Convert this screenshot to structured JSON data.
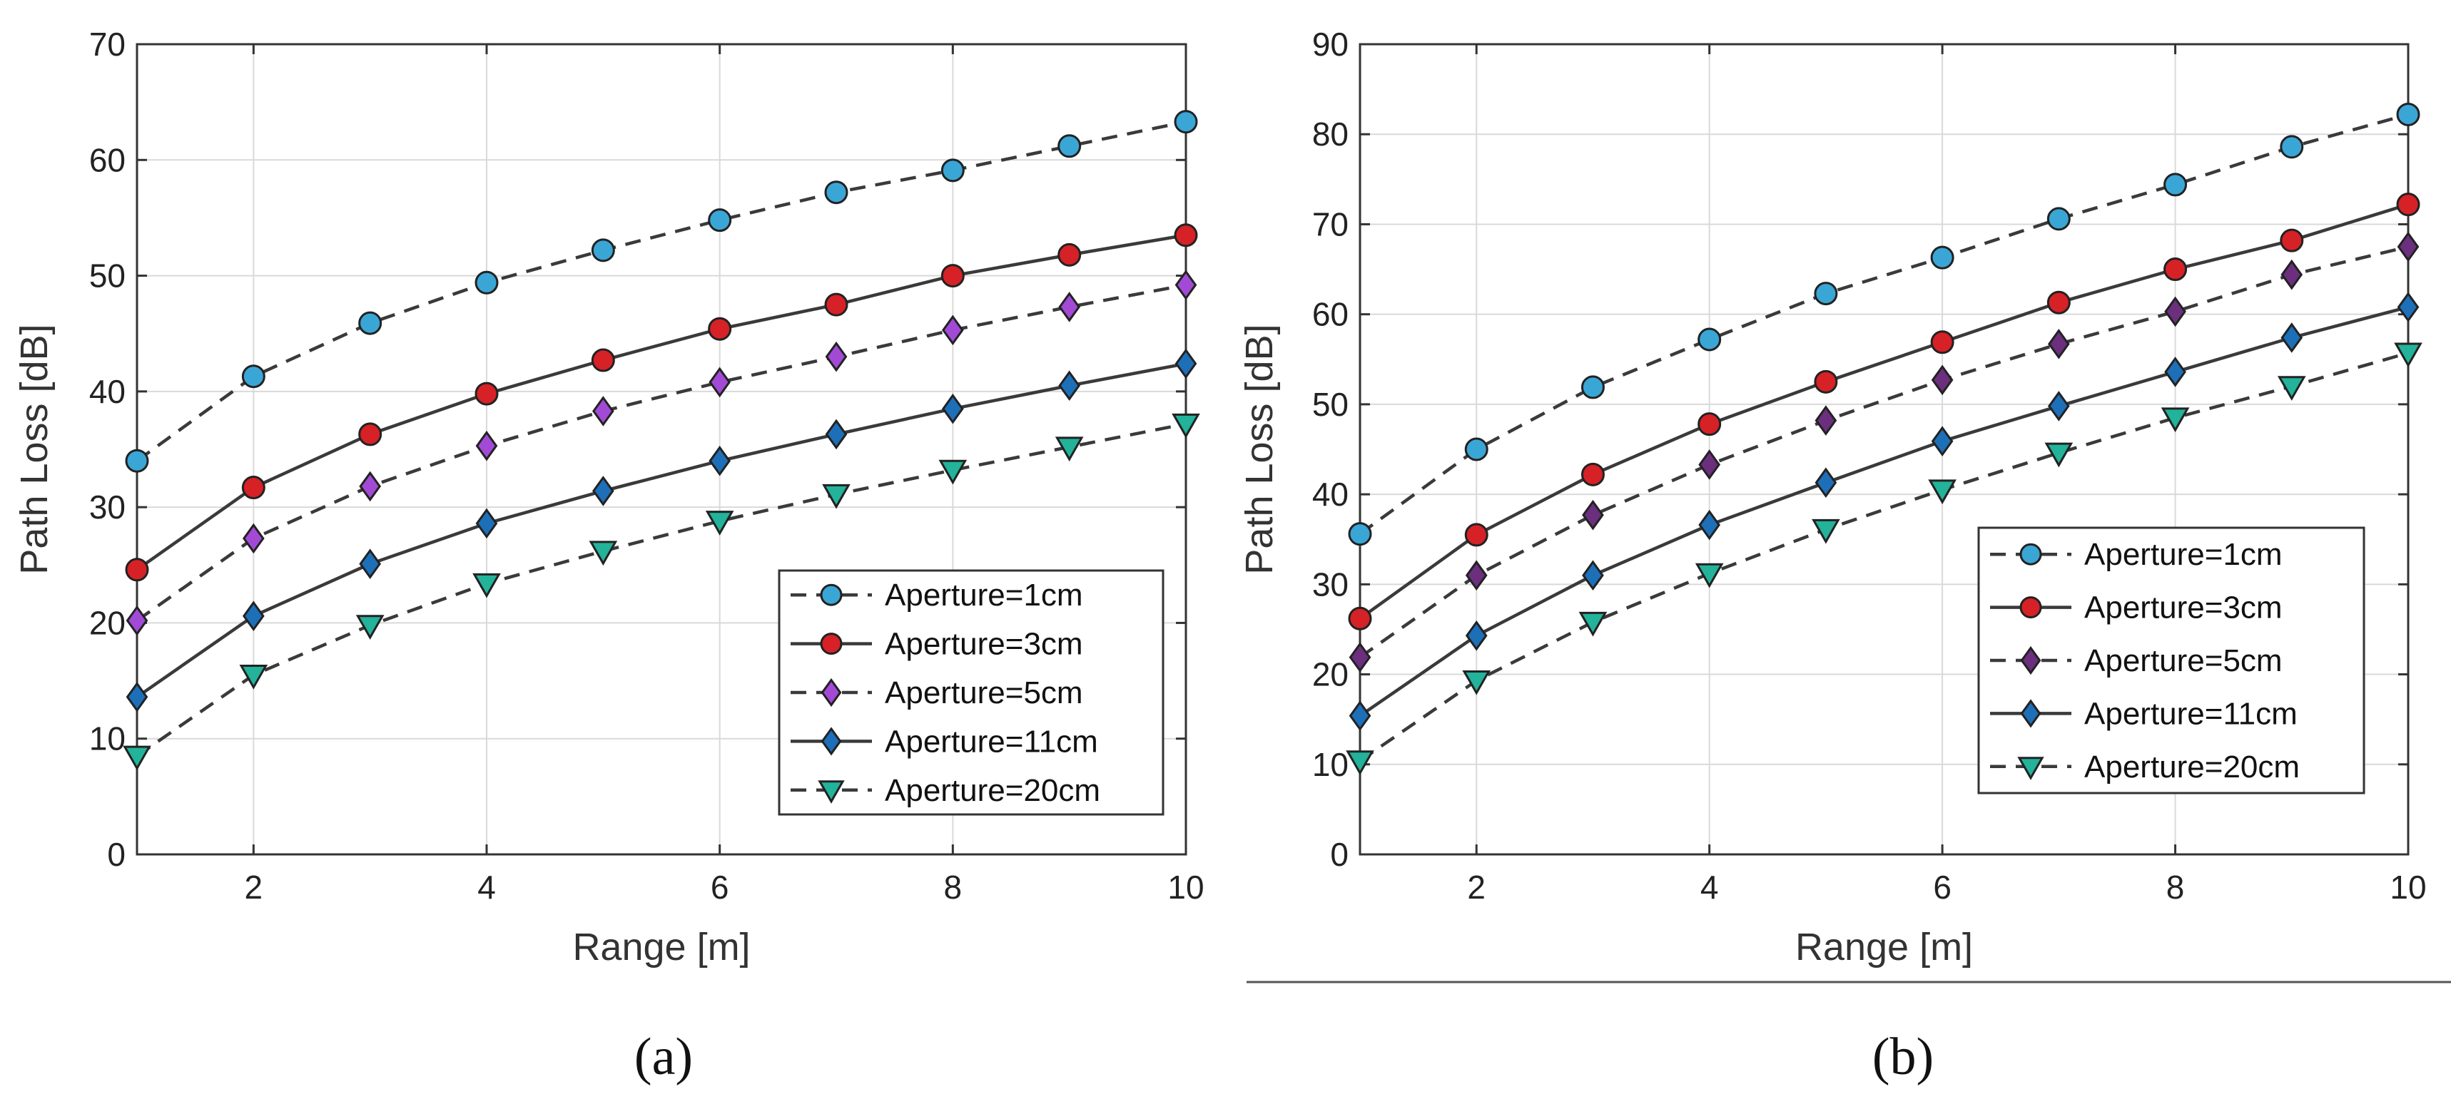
{
  "chart_data": [
    {
      "panel_label": "(a)",
      "type": "line",
      "xlabel": "Range [m]",
      "ylabel": "Path Loss [dB]",
      "xlim": [
        1,
        10
      ],
      "ylim": [
        0,
        70
      ],
      "xticks": [
        2,
        4,
        6,
        8,
        10
      ],
      "yticks": [
        0,
        10,
        20,
        30,
        40,
        50,
        60,
        70
      ],
      "grid": true,
      "legend_position": "lower-right",
      "x": [
        1,
        2,
        3,
        4,
        5,
        6,
        7,
        8,
        9,
        10
      ],
      "series": [
        {
          "name": "Aperture=1cm",
          "style": "dashed",
          "marker": "circle",
          "color": "#3aa6d6",
          "values": [
            34.0,
            41.3,
            45.9,
            49.4,
            52.2,
            54.8,
            57.2,
            59.1,
            61.2,
            63.3
          ]
        },
        {
          "name": "Aperture=3cm",
          "style": "solid",
          "marker": "circle",
          "color": "#d62127",
          "values": [
            24.6,
            31.7,
            36.3,
            39.8,
            42.7,
            45.4,
            47.5,
            50.0,
            51.8,
            53.5
          ]
        },
        {
          "name": "Aperture=5cm",
          "style": "dashed",
          "marker": "diamond",
          "color": "#a24ad6",
          "values": [
            20.2,
            27.3,
            31.8,
            35.3,
            38.3,
            40.8,
            43.0,
            45.3,
            47.3,
            49.2
          ]
        },
        {
          "name": "Aperture=11cm",
          "style": "solid",
          "marker": "diamond",
          "color": "#1d6fb8",
          "values": [
            13.6,
            20.6,
            25.1,
            28.6,
            31.4,
            34.0,
            36.3,
            38.5,
            40.5,
            42.4
          ]
        },
        {
          "name": "Aperture=20cm",
          "style": "dashed",
          "marker": "triangle-down",
          "color": "#22b39a",
          "values": [
            8.5,
            15.5,
            19.8,
            23.4,
            26.2,
            28.8,
            31.1,
            33.2,
            35.2,
            37.2
          ]
        }
      ]
    },
    {
      "panel_label": "(b)",
      "type": "line",
      "xlabel": "Range [m]",
      "ylabel": "Path Loss [dB]",
      "xlim": [
        1,
        10
      ],
      "ylim": [
        0,
        90
      ],
      "xticks": [
        2,
        4,
        6,
        8,
        10
      ],
      "yticks": [
        0,
        10,
        20,
        30,
        40,
        50,
        60,
        70,
        80,
        90
      ],
      "grid": true,
      "legend_position": "lower-right",
      "x": [
        1,
        2,
        3,
        4,
        5,
        6,
        7,
        8,
        9,
        10
      ],
      "series": [
        {
          "name": "Aperture=1cm",
          "style": "dashed",
          "marker": "circle",
          "color": "#3aa6d6",
          "values": [
            35.6,
            45.0,
            51.9,
            57.2,
            62.3,
            66.3,
            70.6,
            74.4,
            78.6,
            82.2
          ]
        },
        {
          "name": "Aperture=3cm",
          "style": "solid",
          "marker": "circle",
          "color": "#d62127",
          "values": [
            26.2,
            35.5,
            42.2,
            47.8,
            52.5,
            56.9,
            61.3,
            65.0,
            68.2,
            72.2
          ]
        },
        {
          "name": "Aperture=5cm",
          "style": "dashed",
          "marker": "diamond",
          "color": "#6b2f7e",
          "values": [
            21.9,
            31.0,
            37.7,
            43.3,
            48.2,
            52.7,
            56.7,
            60.3,
            64.4,
            67.5
          ]
        },
        {
          "name": "Aperture=11cm",
          "style": "solid",
          "marker": "diamond",
          "color": "#1d6fb8",
          "values": [
            15.4,
            24.3,
            31.0,
            36.6,
            41.3,
            45.9,
            49.8,
            53.6,
            57.4,
            60.8
          ]
        },
        {
          "name": "Aperture=20cm",
          "style": "dashed",
          "marker": "triangle-down",
          "color": "#22b39a",
          "values": [
            10.4,
            19.3,
            25.8,
            31.2,
            36.1,
            40.5,
            44.6,
            48.5,
            52.0,
            55.7
          ]
        }
      ]
    }
  ]
}
